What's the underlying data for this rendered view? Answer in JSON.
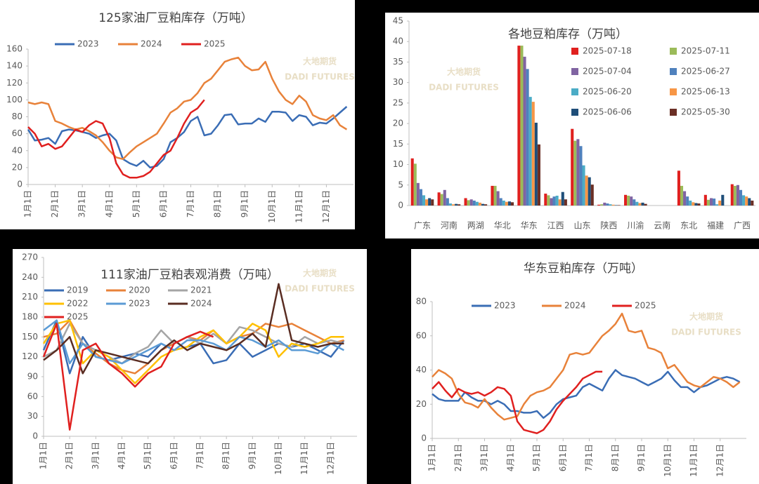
{
  "chart_data": [
    {
      "type": "line",
      "title": "125家油厂豆粕库存（万吨）",
      "watermark": [
        "大地期货",
        "DADI FUTURES"
      ],
      "categories": [
        "1月1日",
        null,
        null,
        null,
        "2月1日",
        null,
        null,
        null,
        "3月1日",
        null,
        null,
        null,
        "4月1日",
        null,
        null,
        null,
        "5月1日",
        null,
        null,
        null,
        "6月1日",
        null,
        null,
        null,
        "7月1日",
        null,
        null,
        null,
        "8月1日",
        null,
        null,
        null,
        "9月1日",
        null,
        null,
        null,
        "10月1日",
        null,
        null,
        null,
        "11月1日",
        null,
        null,
        null,
        "12月1日",
        null,
        null,
        null
      ],
      "ylim": [
        0,
        160
      ],
      "yticks": [
        0,
        20,
        40,
        60,
        80,
        100,
        120,
        140,
        160
      ],
      "series": [
        {
          "name": "2023",
          "color": "#3a6db5",
          "values": [
            65,
            52,
            53,
            55,
            48,
            63,
            65,
            64,
            62,
            60,
            55,
            58,
            60,
            52,
            30,
            25,
            22,
            28,
            20,
            22,
            30,
            50,
            55,
            62,
            75,
            80,
            58,
            60,
            70,
            82,
            83,
            71,
            72,
            72,
            78,
            74,
            86,
            86,
            85,
            75,
            82,
            80,
            70,
            73,
            72,
            78,
            85,
            92
          ]
        },
        {
          "name": "2024",
          "color": "#e8823a",
          "values": [
            97,
            95,
            97,
            95,
            75,
            72,
            68,
            65,
            67,
            63,
            58,
            50,
            40,
            32,
            30,
            38,
            45,
            50,
            55,
            60,
            72,
            85,
            90,
            98,
            100,
            108,
            120,
            125,
            135,
            145,
            148,
            150,
            140,
            135,
            136,
            145,
            125,
            110,
            100,
            95,
            105,
            98,
            82,
            78,
            76,
            82,
            70,
            65
          ]
        },
        {
          "name": "2025",
          "color": "#e0201f",
          "values": [
            68,
            60,
            45,
            48,
            42,
            45,
            55,
            65,
            62,
            70,
            75,
            72,
            55,
            25,
            12,
            8,
            8,
            10,
            15,
            25,
            35,
            40,
            55,
            72,
            85,
            90,
            100,
            null,
            null,
            null,
            null,
            null,
            null,
            null,
            null,
            null,
            null,
            null,
            null,
            null,
            null,
            null,
            null,
            null,
            null,
            null,
            null,
            null
          ]
        }
      ]
    },
    {
      "type": "bar",
      "title": "各地豆粕库存（万吨）",
      "watermark": [
        "大地期货",
        "DADI FUTURES"
      ],
      "categories": [
        "广东",
        "河南",
        "两湖",
        "华北",
        "华东",
        "江西",
        "山东",
        "陕西",
        "川渝",
        "云南",
        "东北",
        "福建",
        "广西"
      ],
      "ylim": [
        0,
        45
      ],
      "yticks": [
        0,
        5,
        10,
        15,
        20,
        25,
        30,
        35,
        40,
        45
      ],
      "series": [
        {
          "name": "2025-07-18",
          "color": "#e0201f",
          "values": [
            11.5,
            3.2,
            1.8,
            4.8,
            39,
            2.9,
            18.7,
            0.2,
            2.6,
            0,
            8.5,
            2.6,
            5.2
          ]
        },
        {
          "name": "2025-07-11",
          "color": "#9bbb59",
          "values": [
            10.2,
            2.8,
            1.3,
            4.8,
            39,
            2.5,
            15.8,
            0.3,
            2.4,
            0,
            4.8,
            1.4,
            4.8
          ]
        },
        {
          "name": "2025-07-04",
          "color": "#8064a2",
          "values": [
            5.5,
            3.8,
            1.5,
            3.5,
            36.3,
            1.8,
            16.2,
            0.7,
            2.2,
            0,
            3.5,
            1.8,
            5
          ]
        },
        {
          "name": "2025-06-27",
          "color": "#4f81bd",
          "values": [
            4,
            1.8,
            1.2,
            1.8,
            33.3,
            2.2,
            14.5,
            0.5,
            1.5,
            0,
            2.2,
            1.7,
            3.8
          ]
        },
        {
          "name": "2025-06-20",
          "color": "#4bacc6",
          "values": [
            2.5,
            0.5,
            0.9,
            1.2,
            26.5,
            2.4,
            9.8,
            0.3,
            0.9,
            0,
            1.2,
            0.3,
            2.5
          ]
        },
        {
          "name": "2025-06-13",
          "color": "#f79646",
          "values": [
            1.5,
            0.3,
            0.7,
            0.9,
            25.3,
            1.5,
            7.3,
            0.2,
            0.6,
            0,
            0.8,
            1.2,
            2.2
          ]
        },
        {
          "name": "2025-06-06",
          "color": "#1f4e79",
          "values": [
            1.8,
            0.4,
            0.4,
            1,
            20.2,
            3.3,
            6.9,
            0.1,
            0.7,
            0,
            0.6,
            2.6,
            1.8
          ]
        },
        {
          "name": "2025-05-30",
          "color": "#6b2f25",
          "values": [
            1.5,
            0.3,
            0.3,
            0.8,
            14.9,
            1.5,
            5.1,
            0.1,
            0.4,
            0,
            0.5,
            0,
            1.2
          ]
        }
      ]
    },
    {
      "type": "line",
      "title": "111家油厂豆粕表观消费（万吨）",
      "watermark": [
        "大地期货",
        "DADI FUTURES"
      ],
      "categories": [
        "1月1日",
        null,
        "2月1日",
        null,
        "3月1日",
        null,
        "4月1日",
        null,
        "5月1日",
        null,
        "6月1日",
        null,
        "7月1日",
        null,
        "8月1日",
        null,
        "9月1日",
        null,
        "10月1日",
        null,
        "11月1日",
        null,
        "12月1日",
        null
      ],
      "ylim": [
        0,
        270
      ],
      "yticks": [
        0,
        30,
        60,
        90,
        120,
        150,
        180,
        210,
        240,
        270
      ],
      "series": [
        {
          "name": "2019",
          "color": "#3a6db5",
          "values": [
            130,
            175,
            95,
            150,
            120,
            115,
            120,
            125,
            120,
            140,
            130,
            135,
            140,
            110,
            115,
            140,
            120,
            130,
            140,
            135,
            140,
            130,
            120,
            145
          ]
        },
        {
          "name": "2020",
          "color": "#e8823a",
          "values": [
            150,
            155,
            175,
            140,
            125,
            110,
            100,
            95,
            110,
            130,
            140,
            150,
            145,
            160,
            140,
            150,
            155,
            170,
            165,
            170,
            160,
            150,
            140,
            145
          ]
        },
        {
          "name": "2021",
          "color": "#a5a5a5",
          "values": [
            120,
            130,
            170,
            140,
            130,
            120,
            110,
            125,
            135,
            160,
            140,
            150,
            140,
            155,
            140,
            165,
            160,
            150,
            140,
            135,
            150,
            140,
            145,
            140
          ]
        },
        {
          "name": "2022",
          "color": "#ffc000",
          "values": [
            140,
            170,
            175,
            110,
            130,
            120,
            100,
            80,
            100,
            120,
            130,
            135,
            150,
            160,
            140,
            150,
            170,
            160,
            120,
            140,
            135,
            140,
            150,
            150
          ]
        },
        {
          "name": "2023",
          "color": "#5b9bd5",
          "values": [
            160,
            175,
            110,
            140,
            120,
            115,
            110,
            120,
            130,
            140,
            130,
            145,
            145,
            140,
            130,
            150,
            145,
            135,
            145,
            130,
            130,
            125,
            140,
            130
          ]
        },
        {
          "name": "2024",
          "color": "#5a2d22",
          "values": [
            115,
            130,
            150,
            95,
            130,
            125,
            120,
            115,
            110,
            130,
            145,
            130,
            140,
            135,
            130,
            140,
            155,
            135,
            230,
            145,
            140,
            135,
            140,
            140
          ]
        },
        {
          "name": "2025",
          "color": "#e0201f",
          "values": [
            120,
            170,
            10,
            130,
            140,
            110,
            95,
            75,
            95,
            105,
            140,
            150,
            158,
            150,
            null,
            null,
            null,
            null,
            null,
            null,
            null,
            null,
            null,
            null
          ]
        }
      ]
    },
    {
      "type": "line",
      "title": "华东豆粕库存（万吨）",
      "watermark": [
        "大地期货",
        "DADI FUTURES"
      ],
      "categories": [
        "1月1日",
        null,
        null,
        null,
        "2月1日",
        null,
        null,
        null,
        "3月1日",
        null,
        null,
        null,
        "4月1日",
        null,
        null,
        null,
        "5月1日",
        null,
        null,
        null,
        "6月1日",
        null,
        null,
        null,
        "7月1日",
        null,
        null,
        null,
        "8月1日",
        null,
        null,
        null,
        "9月1日",
        null,
        null,
        null,
        "10月1日",
        null,
        null,
        null,
        "11月1日",
        null,
        null,
        null,
        "12月1日",
        null,
        null,
        null
      ],
      "ylim": [
        0,
        80
      ],
      "yticks": [
        0,
        20,
        40,
        60,
        80
      ],
      "series": [
        {
          "name": "2023",
          "color": "#3a6db5",
          "values": [
            26,
            23,
            22,
            22,
            22,
            27,
            24,
            22,
            22,
            20,
            22,
            20,
            16,
            16,
            15,
            15,
            16,
            12,
            15,
            20,
            23,
            24,
            25,
            30,
            32,
            30,
            28,
            35,
            40,
            37,
            36,
            35,
            33,
            31,
            33,
            35,
            39,
            34,
            30,
            30,
            27,
            30,
            31,
            33,
            35,
            36,
            35,
            33
          ]
        },
        {
          "name": "2024",
          "color": "#e8823a",
          "values": [
            36,
            40,
            38,
            35,
            26,
            21,
            20,
            18,
            23,
            18,
            14,
            11,
            12,
            13,
            20,
            25,
            27,
            28,
            30,
            35,
            40,
            49,
            50,
            49,
            50,
            55,
            60,
            63,
            67,
            73,
            63,
            62,
            63,
            53,
            52,
            50,
            41,
            43,
            38,
            33,
            31,
            30,
            33,
            36,
            35,
            33,
            30,
            33
          ]
        },
        {
          "name": "2025",
          "color": "#e0201f",
          "values": [
            29,
            33,
            28,
            24,
            29,
            27,
            26,
            27,
            25,
            27,
            30,
            29,
            25,
            10,
            5,
            4,
            3,
            5,
            10,
            17,
            22,
            26,
            30,
            35,
            37,
            39,
            39,
            null,
            null,
            null,
            null,
            null,
            null,
            null,
            null,
            null,
            null,
            null,
            null,
            null,
            null,
            null,
            null,
            null,
            null,
            null,
            null,
            null
          ]
        }
      ]
    }
  ]
}
